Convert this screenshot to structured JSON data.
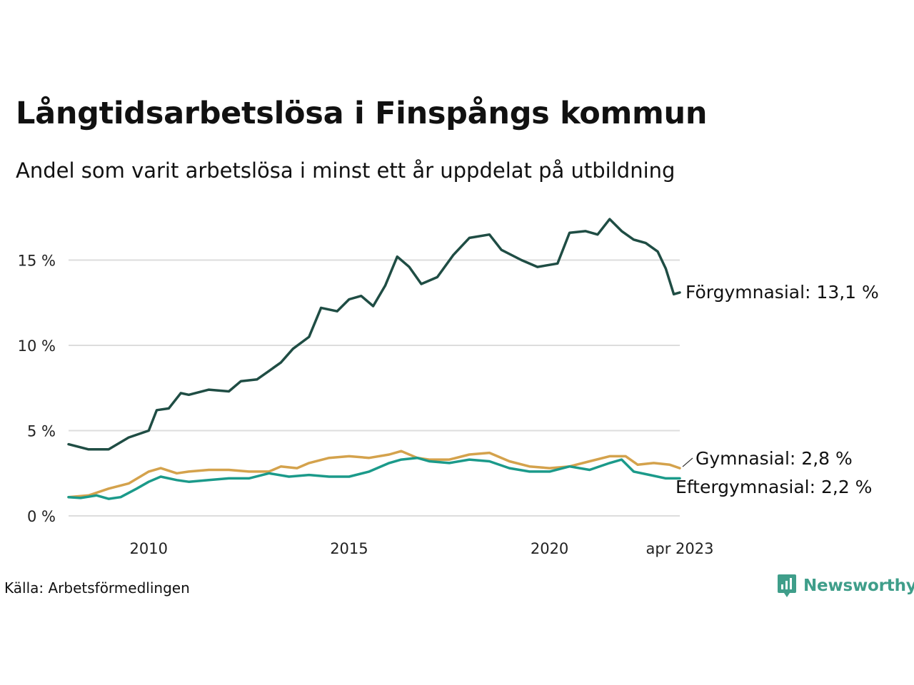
{
  "header": {
    "title": "Långtidsarbetslösa i Finspångs kommun",
    "subtitle": "Andel som varit arbetslösa i minst ett år uppdelat på utbildning"
  },
  "footer": {
    "source": "Källa: Arbetsförmedlingen",
    "brand": "Newsworthy",
    "brand_color": "#3f9e8a"
  },
  "chart_data": {
    "type": "line",
    "title": "Långtidsarbetslösa i Finspångs kommun",
    "subtitle": "Andel som varit arbetslösa i minst ett år uppdelat på utbildning",
    "xlabel": "",
    "ylabel": "",
    "x_start": "2008-01",
    "x_end": "2023-04",
    "x_range": [
      2008.0,
      2023.25
    ],
    "ylim": [
      0,
      18
    ],
    "y_ticks": [
      0,
      5,
      10,
      15
    ],
    "y_tick_labels": [
      "0 %",
      "5 %",
      "10 %",
      "15 %"
    ],
    "x_ticks": [
      2010,
      2015,
      2020,
      2023.25
    ],
    "x_tick_labels": [
      "2010",
      "2015",
      "2020",
      "apr 2023"
    ],
    "grid": "horizontal",
    "series": [
      {
        "name": "Förgymnasial",
        "label": "Förgymnasial: 13,1 %",
        "color": "#1f4d44",
        "points": [
          [
            2008.0,
            4.2
          ],
          [
            2008.5,
            3.9
          ],
          [
            2009.0,
            3.9
          ],
          [
            2009.5,
            4.6
          ],
          [
            2010.0,
            5.0
          ],
          [
            2010.2,
            6.2
          ],
          [
            2010.5,
            6.3
          ],
          [
            2010.8,
            7.2
          ],
          [
            2011.0,
            7.1
          ],
          [
            2011.5,
            7.4
          ],
          [
            2012.0,
            7.3
          ],
          [
            2012.3,
            7.9
          ],
          [
            2012.7,
            8.0
          ],
          [
            2013.0,
            8.5
          ],
          [
            2013.3,
            9.0
          ],
          [
            2013.6,
            9.8
          ],
          [
            2014.0,
            10.5
          ],
          [
            2014.3,
            12.2
          ],
          [
            2014.7,
            12.0
          ],
          [
            2015.0,
            12.7
          ],
          [
            2015.3,
            12.9
          ],
          [
            2015.6,
            12.3
          ],
          [
            2015.9,
            13.5
          ],
          [
            2016.2,
            15.2
          ],
          [
            2016.5,
            14.6
          ],
          [
            2016.8,
            13.6
          ],
          [
            2017.2,
            14.0
          ],
          [
            2017.6,
            15.3
          ],
          [
            2018.0,
            16.3
          ],
          [
            2018.5,
            16.5
          ],
          [
            2018.8,
            15.6
          ],
          [
            2019.3,
            15.0
          ],
          [
            2019.7,
            14.6
          ],
          [
            2020.2,
            14.8
          ],
          [
            2020.5,
            16.6
          ],
          [
            2020.9,
            16.7
          ],
          [
            2021.2,
            16.5
          ],
          [
            2021.5,
            17.4
          ],
          [
            2021.8,
            16.7
          ],
          [
            2022.1,
            16.2
          ],
          [
            2022.4,
            16.0
          ],
          [
            2022.7,
            15.5
          ],
          [
            2022.9,
            14.5
          ],
          [
            2023.1,
            13.0
          ],
          [
            2023.25,
            13.1
          ]
        ],
        "last_value": 13.1
      },
      {
        "name": "Gymnasial",
        "label": "Gymnasial:  2,8 %",
        "color": "#d4a24c",
        "points": [
          [
            2008.0,
            1.1
          ],
          [
            2008.5,
            1.2
          ],
          [
            2009.0,
            1.6
          ],
          [
            2009.5,
            1.9
          ],
          [
            2010.0,
            2.6
          ],
          [
            2010.3,
            2.8
          ],
          [
            2010.7,
            2.5
          ],
          [
            2011.0,
            2.6
          ],
          [
            2011.5,
            2.7
          ],
          [
            2012.0,
            2.7
          ],
          [
            2012.5,
            2.6
          ],
          [
            2013.0,
            2.6
          ],
          [
            2013.3,
            2.9
          ],
          [
            2013.7,
            2.8
          ],
          [
            2014.0,
            3.1
          ],
          [
            2014.5,
            3.4
          ],
          [
            2015.0,
            3.5
          ],
          [
            2015.5,
            3.4
          ],
          [
            2016.0,
            3.6
          ],
          [
            2016.3,
            3.8
          ],
          [
            2016.7,
            3.4
          ],
          [
            2017.0,
            3.3
          ],
          [
            2017.5,
            3.3
          ],
          [
            2018.0,
            3.6
          ],
          [
            2018.5,
            3.7
          ],
          [
            2019.0,
            3.2
          ],
          [
            2019.5,
            2.9
          ],
          [
            2020.0,
            2.8
          ],
          [
            2020.5,
            2.9
          ],
          [
            2021.0,
            3.2
          ],
          [
            2021.5,
            3.5
          ],
          [
            2021.9,
            3.5
          ],
          [
            2022.2,
            3.0
          ],
          [
            2022.6,
            3.1
          ],
          [
            2023.0,
            3.0
          ],
          [
            2023.25,
            2.8
          ]
        ],
        "last_value": 2.8
      },
      {
        "name": "Eftergymnasial",
        "label": "Eftergymnasial:  2,2 %",
        "color": "#1b9a8a",
        "points": [
          [
            2008.0,
            1.1
          ],
          [
            2008.3,
            1.05
          ],
          [
            2008.7,
            1.2
          ],
          [
            2009.0,
            1.0
          ],
          [
            2009.3,
            1.1
          ],
          [
            2009.7,
            1.6
          ],
          [
            2010.0,
            2.0
          ],
          [
            2010.3,
            2.3
          ],
          [
            2010.7,
            2.1
          ],
          [
            2011.0,
            2.0
          ],
          [
            2011.5,
            2.1
          ],
          [
            2012.0,
            2.2
          ],
          [
            2012.5,
            2.2
          ],
          [
            2013.0,
            2.5
          ],
          [
            2013.5,
            2.3
          ],
          [
            2014.0,
            2.4
          ],
          [
            2014.5,
            2.3
          ],
          [
            2015.0,
            2.3
          ],
          [
            2015.5,
            2.6
          ],
          [
            2016.0,
            3.1
          ],
          [
            2016.3,
            3.3
          ],
          [
            2016.7,
            3.4
          ],
          [
            2017.0,
            3.2
          ],
          [
            2017.5,
            3.1
          ],
          [
            2018.0,
            3.3
          ],
          [
            2018.5,
            3.2
          ],
          [
            2019.0,
            2.8
          ],
          [
            2019.5,
            2.6
          ],
          [
            2020.0,
            2.6
          ],
          [
            2020.5,
            2.9
          ],
          [
            2021.0,
            2.7
          ],
          [
            2021.5,
            3.1
          ],
          [
            2021.8,
            3.3
          ],
          [
            2022.1,
            2.6
          ],
          [
            2022.5,
            2.4
          ],
          [
            2022.9,
            2.2
          ],
          [
            2023.25,
            2.2
          ]
        ],
        "last_value": 2.2
      }
    ]
  }
}
